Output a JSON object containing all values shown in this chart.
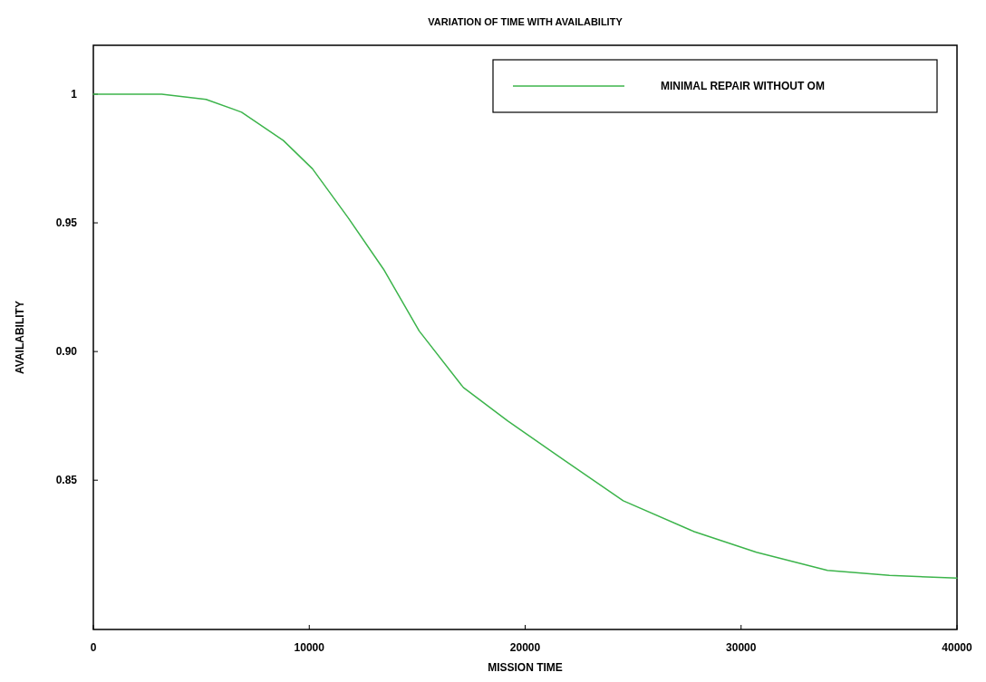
{
  "chart_data": {
    "type": "line",
    "title": "VARIATION OF TIME WITH AVAILABILITY",
    "xlabel": "MISSION TIME",
    "ylabel": "AVAILABILITY",
    "x": [
      0,
      3165,
      5220,
      6865,
      8800,
      10150,
      11800,
      13440,
      15090,
      17140,
      19200,
      21250,
      24540,
      27830,
      30710,
      34000,
      36870,
      40000
    ],
    "series": [
      {
        "name": "MINIMAL REPAIR WITHOUT OM",
        "color": "#3cb44b",
        "values": [
          1.0,
          1.0,
          0.998,
          0.993,
          0.982,
          0.971,
          0.952,
          0.932,
          0.908,
          0.886,
          0.873,
          0.861,
          0.842,
          0.83,
          0.822,
          0.815,
          0.813,
          0.812
        ]
      }
    ],
    "xlim": [
      0,
      40000
    ],
    "xticks": [
      0,
      10000,
      20000,
      30000,
      40000
    ],
    "ylim": [
      0.792,
      1.019
    ],
    "yticks": [
      {
        "value": 1,
        "label": "1"
      },
      {
        "value": 0.95,
        "label": "0.95"
      },
      {
        "value": 0.9,
        "label": "0.90"
      },
      {
        "value": 0.85,
        "label": "0.85"
      }
    ],
    "legend": "top right",
    "grid": false
  }
}
